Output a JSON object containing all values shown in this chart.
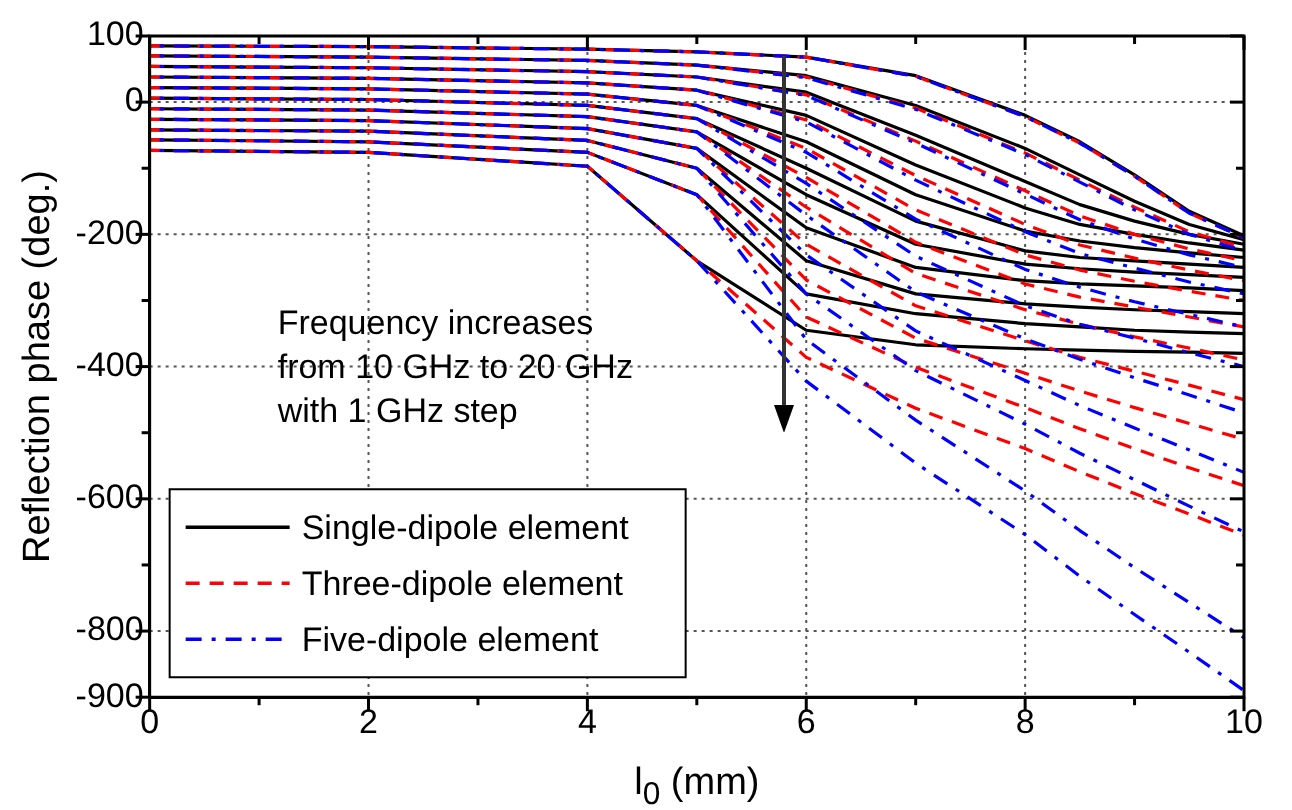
{
  "chart_data": {
    "type": "line",
    "xlabel": "l$_{0}$ (mm)",
    "ylabel": "Reflection phase (deg.)",
    "x": [
      0,
      2,
      4,
      5,
      6,
      7,
      8,
      8.5,
      9,
      9.5,
      10
    ],
    "xlim": [
      0,
      10
    ],
    "xticks": [
      0,
      {
        "value": 1,
        "label": null
      },
      2,
      {
        "value": 3,
        "label": null
      },
      4,
      {
        "value": 5,
        "label": null
      },
      6,
      {
        "value": 7,
        "label": null
      },
      8,
      {
        "value": 9,
        "label": null
      },
      10
    ],
    "ylim": [
      -900,
      100
    ],
    "yticks": [
      100,
      0,
      {
        "value": -100,
        "label": null
      },
      -200,
      {
        "value": -300,
        "label": null
      },
      -400,
      {
        "value": -500,
        "label": null
      },
      -600,
      {
        "value": -700,
        "label": null
      },
      -800,
      -900
    ],
    "grid": true,
    "legend": "bottom left",
    "marker": "none",
    "annotations": [
      "Frequency increases\nfrom 10 GHz to 20 GHz\nwith 1 GHz step"
    ],
    "series": [
      {
        "name": "Single-dipole element",
        "color": "#000000",
        "line_style": "solid",
        "values": [
          85,
          84,
          80,
          76,
          68,
          40,
          -20,
          -60,
          -110,
          -165,
          -202
        ]
      },
      {
        "color": "#000000",
        "line_style": "solid",
        "values": [
          70,
          68,
          63,
          56,
          40,
          -5,
          -70,
          -110,
          -150,
          -185,
          -208
        ]
      },
      {
        "color": "#000000",
        "line_style": "solid",
        "values": [
          54,
          52,
          46,
          38,
          15,
          -50,
          -120,
          -155,
          -180,
          -200,
          -215
        ]
      },
      {
        "color": "#000000",
        "line_style": "solid",
        "values": [
          38,
          36,
          29,
          18,
          -20,
          -95,
          -160,
          -185,
          -200,
          -213,
          -224
        ]
      },
      {
        "color": "#000000",
        "line_style": "solid",
        "values": [
          22,
          20,
          12,
          -5,
          -60,
          -140,
          -195,
          -210,
          -220,
          -228,
          -235
        ]
      },
      {
        "color": "#000000",
        "line_style": "solid",
        "values": [
          6,
          4,
          -5,
          -25,
          -100,
          -180,
          -225,
          -235,
          -240,
          -245,
          -250
        ]
      },
      {
        "color": "#000000",
        "line_style": "solid",
        "values": [
          -10,
          -12,
          -22,
          -45,
          -140,
          -215,
          -245,
          -252,
          -257,
          -261,
          -265
        ]
      },
      {
        "color": "#000000",
        "line_style": "solid",
        "values": [
          -26,
          -28,
          -40,
          -70,
          -190,
          -250,
          -270,
          -275,
          -278,
          -281,
          -285
        ]
      },
      {
        "color": "#000000",
        "line_style": "solid",
        "values": [
          -42,
          -44,
          -58,
          -100,
          -240,
          -290,
          -305,
          -310,
          -314,
          -317,
          -320
        ]
      },
      {
        "color": "#000000",
        "line_style": "solid",
        "values": [
          -57,
          -60,
          -76,
          -140,
          -290,
          -320,
          -335,
          -340,
          -345,
          -348,
          -350
        ]
      },
      {
        "color": "#000000",
        "line_style": "solid",
        "values": [
          -73,
          -76,
          -97,
          -240,
          -345,
          -367,
          -373,
          -375,
          -377,
          -378,
          -380
        ]
      },
      {
        "name": "Three-dipole element",
        "color": "#ff0000",
        "line_style": "dashed",
        "values": [
          85,
          84,
          80,
          76,
          68,
          39,
          -22,
          -62,
          -112,
          -168,
          -205
        ]
      },
      {
        "color": "#ff0000",
        "line_style": "dashed",
        "values": [
          70,
          68,
          63,
          56,
          38,
          -9,
          -77,
          -118,
          -159,
          -196,
          -220
        ]
      },
      {
        "color": "#ff0000",
        "line_style": "dashed",
        "values": [
          54,
          52,
          46,
          38,
          11,
          -59,
          -134,
          -172,
          -200,
          -222,
          -240
        ]
      },
      {
        "color": "#ff0000",
        "line_style": "dashed",
        "values": [
          38,
          36,
          29,
          18,
          -27,
          -111,
          -185,
          -216,
          -236,
          -254,
          -270
        ]
      },
      {
        "color": "#ff0000",
        "line_style": "dashed",
        "values": [
          22,
          20,
          12,
          -5,
          -70,
          -163,
          -231,
          -254,
          -271,
          -286,
          -300
        ]
      },
      {
        "color": "#ff0000",
        "line_style": "dashed",
        "values": [
          6,
          4,
          -5,
          -25,
          -114,
          -212,
          -275,
          -295,
          -310,
          -325,
          -340
        ]
      },
      {
        "color": "#ff0000",
        "line_style": "dashed",
        "values": [
          -10,
          -12,
          -22,
          -45,
          -159,
          -259,
          -314,
          -336,
          -355,
          -372,
          -390
        ]
      },
      {
        "color": "#ff0000",
        "line_style": "dashed",
        "values": [
          -26,
          -28,
          -40,
          -70,
          -215,
          -308,
          -361,
          -386,
          -407,
          -428,
          -450
        ]
      },
      {
        "color": "#ff0000",
        "line_style": "dashed",
        "values": [
          -42,
          -44,
          -58,
          -100,
          -269,
          -357,
          -410,
          -437,
          -462,
          -486,
          -510
        ]
      },
      {
        "color": "#ff0000",
        "line_style": "dashed",
        "values": [
          -57,
          -60,
          -76,
          -140,
          -325,
          -401,
          -462,
          -494,
          -524,
          -553,
          -580
        ]
      },
      {
        "color": "#ff0000",
        "line_style": "dashed",
        "values": [
          -73,
          -76,
          -97,
          -240,
          -386,
          -463,
          -524,
          -559,
          -592,
          -623,
          -655
        ]
      },
      {
        "name": "Five-dipole element",
        "color": "#0000ff",
        "line_style": "dashdot",
        "values": [
          85,
          84,
          80,
          76,
          68,
          39,
          -22,
          -62,
          -112,
          -168,
          -205
        ]
      },
      {
        "color": "#0000ff",
        "line_style": "dashdot",
        "values": [
          70,
          68,
          63,
          56,
          37,
          -11,
          -79,
          -121,
          -163,
          -200,
          -225
        ]
      },
      {
        "color": "#0000ff",
        "line_style": "dashdot",
        "values": [
          54,
          52,
          46,
          38,
          10,
          -62,
          -139,
          -178,
          -207,
          -231,
          -250
        ]
      },
      {
        "color": "#0000ff",
        "line_style": "dashdot",
        "values": [
          38,
          36,
          29,
          18,
          -30,
          -118,
          -196,
          -229,
          -251,
          -272,
          -290
        ]
      },
      {
        "color": "#0000ff",
        "line_style": "dashdot",
        "values": [
          22,
          20,
          12,
          -5,
          -76,
          -177,
          -253,
          -280,
          -302,
          -321,
          -340
        ]
      },
      {
        "color": "#0000ff",
        "line_style": "dashdot",
        "values": [
          6,
          4,
          -5,
          -25,
          -123,
          -233,
          -308,
          -336,
          -357,
          -379,
          -400
        ]
      },
      {
        "color": "#0000ff",
        "line_style": "dashdot",
        "values": [
          -10,
          -12,
          -22,
          -45,
          -171,
          -287,
          -358,
          -389,
          -417,
          -443,
          -470
        ]
      },
      {
        "color": "#0000ff",
        "line_style": "dashdot",
        "values": [
          -26,
          -28,
          -40,
          -70,
          -231,
          -346,
          -421,
          -459,
          -493,
          -526,
          -560
        ]
      },
      {
        "color": "#0000ff",
        "line_style": "dashdot",
        "values": [
          -42,
          -44,
          -58,
          -100,
          -290,
          -406,
          -487,
          -531,
          -571,
          -611,
          -650
        ]
      },
      {
        "color": "#0000ff",
        "line_style": "dashdot",
        "values": [
          -57,
          -60,
          -76,
          -140,
          -359,
          -481,
          -588,
          -648,
          -704,
          -757,
          -810
        ]
      },
      {
        "color": "#0000ff",
        "line_style": "dashdot",
        "values": [
          -73,
          -76,
          -97,
          -240,
          -422,
          -546,
          -654,
          -717,
          -775,
          -832,
          -890
        ]
      }
    ]
  }
}
